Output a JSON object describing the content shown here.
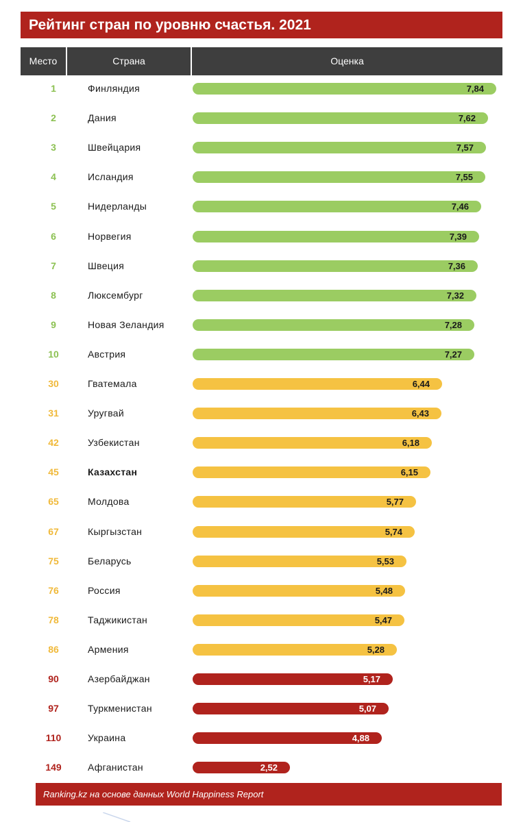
{
  "title": "Рейтинг стран по уровню счастья. 2021",
  "columns": {
    "place": "Место",
    "country": "Страна",
    "score": "Оценка"
  },
  "footer": "Ranking.kz на основе данных World Happiness Report",
  "colors": {
    "green": "#9bcc62",
    "yellow": "#f5c242",
    "red": "#b0231d",
    "header": "#3e3e3e"
  },
  "chart_data": {
    "type": "bar",
    "orientation": "horizontal",
    "title": "Рейтинг стран по уровню счастья. 2021",
    "xlim": [
      0,
      8
    ],
    "rows": [
      {
        "rank": "1",
        "country": "Финляндия",
        "value": 7.84,
        "label": "7,84",
        "group": "green"
      },
      {
        "rank": "2",
        "country": "Дания",
        "value": 7.62,
        "label": "7,62",
        "group": "green"
      },
      {
        "rank": "3",
        "country": "Швейцария",
        "value": 7.57,
        "label": "7,57",
        "group": "green"
      },
      {
        "rank": "4",
        "country": "Исландия",
        "value": 7.55,
        "label": "7,55",
        "group": "green"
      },
      {
        "rank": "5",
        "country": "Нидерланды",
        "value": 7.46,
        "label": "7,46",
        "group": "green"
      },
      {
        "rank": "6",
        "country": "Норвегия",
        "value": 7.39,
        "label": "7,39",
        "group": "green"
      },
      {
        "rank": "7",
        "country": "Швеция",
        "value": 7.36,
        "label": "7,36",
        "group": "green"
      },
      {
        "rank": "8",
        "country": "Люксембург",
        "value": 7.32,
        "label": "7,32",
        "group": "green"
      },
      {
        "rank": "9",
        "country": "Новая Зеландия",
        "value": 7.28,
        "label": "7,28",
        "group": "green"
      },
      {
        "rank": "10",
        "country": "Австрия",
        "value": 7.27,
        "label": "7,27",
        "group": "green"
      },
      {
        "rank": "30",
        "country": "Гватемала",
        "value": 6.44,
        "label": "6,44",
        "group": "yellow"
      },
      {
        "rank": "31",
        "country": "Уругвай",
        "value": 6.43,
        "label": "6,43",
        "group": "yellow"
      },
      {
        "rank": "42",
        "country": "Узбекистан",
        "value": 6.18,
        "label": "6,18",
        "group": "yellow"
      },
      {
        "rank": "45",
        "country": "Казахстан",
        "value": 6.15,
        "label": "6,15",
        "group": "yellow",
        "bold": true
      },
      {
        "rank": "65",
        "country": "Молдова",
        "value": 5.77,
        "label": "5,77",
        "group": "yellow"
      },
      {
        "rank": "67",
        "country": "Кыргызстан",
        "value": 5.74,
        "label": "5,74",
        "group": "yellow"
      },
      {
        "rank": "75",
        "country": "Беларусь",
        "value": 5.53,
        "label": "5,53",
        "group": "yellow"
      },
      {
        "rank": "76",
        "country": "Россия",
        "value": 5.48,
        "label": "5,48",
        "group": "yellow"
      },
      {
        "rank": "78",
        "country": "Таджикистан",
        "value": 5.47,
        "label": "5,47",
        "group": "yellow"
      },
      {
        "rank": "86",
        "country": "Армения",
        "value": 5.28,
        "label": "5,28",
        "group": "yellow"
      },
      {
        "rank": "90",
        "country": "Азербайджан",
        "value": 5.17,
        "label": "5,17",
        "group": "red"
      },
      {
        "rank": "97",
        "country": "Туркменистан",
        "value": 5.07,
        "label": "5,07",
        "group": "red"
      },
      {
        "rank": "110",
        "country": "Украина",
        "value": 4.88,
        "label": "4,88",
        "group": "red"
      },
      {
        "rank": "149",
        "country": "Афганистан",
        "value": 2.52,
        "label": "2,52",
        "group": "red"
      }
    ]
  }
}
